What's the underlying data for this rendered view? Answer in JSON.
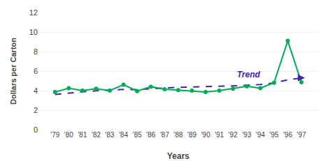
{
  "chart_data": {
    "type": "line",
    "categories": [
      "'79",
      "'80",
      "'81",
      "'82",
      "'83",
      "'84",
      "'85",
      "'86",
      "'87",
      "'88",
      "'89",
      "'90",
      "'91",
      "'92",
      "'93",
      "'94",
      "'95",
      "'96",
      "'97"
    ],
    "series": [
      {
        "color": "#4422aa",
        "line_style": "dashed",
        "values": [
          3.6,
          3.75,
          3.88,
          3.98,
          4.05,
          4.12,
          4.1,
          4.2,
          4.27,
          4.33,
          4.36,
          4.38,
          4.42,
          4.48,
          4.55,
          4.63,
          4.78,
          5.1,
          5.3
        ]
      },
      {
        "color": "#00aa55",
        "line_style": "solid",
        "marker": "circle",
        "values": [
          3.85,
          4.25,
          4.0,
          4.2,
          4.0,
          4.6,
          3.95,
          4.4,
          4.15,
          4.05,
          4.0,
          3.85,
          4.0,
          4.2,
          4.45,
          4.25,
          4.8,
          9.1,
          4.85
        ]
      }
    ],
    "xlabel": "Years",
    "ylabel": "Dollars per Carton",
    "ylim": [
      0,
      12
    ],
    "yticks": [
      0,
      2,
      4,
      6,
      8,
      10,
      12
    ],
    "grid": true,
    "annotations": [
      {
        "text": "Trend",
        "x": "'92",
        "y": 5.03,
        "color": "#4422aa"
      }
    ]
  }
}
